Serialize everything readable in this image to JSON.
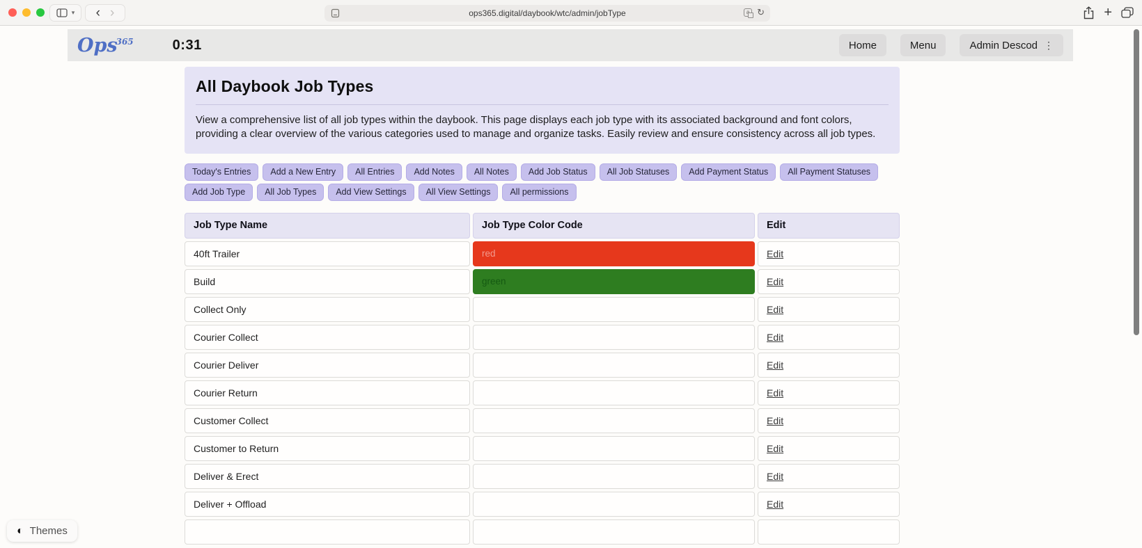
{
  "browser": {
    "url": "ops365.digital/daybook/wtc/admin/jobType"
  },
  "app_header": {
    "logo_text": "Ops",
    "logo_sup": "365",
    "timer": "0:31",
    "nav_buttons": [
      "Home",
      "Menu",
      "Admin Descod"
    ]
  },
  "intro": {
    "title": "All Daybook Job Types",
    "description": "View a comprehensive list of all job types within the daybook. This page displays each job type with its associated background and font colors, providing a clear overview of the various categories used to manage and organize tasks. Easily review and ensure consistency across all job types."
  },
  "action_buttons": [
    "Today's Entries",
    "Add a New Entry",
    "All Entries",
    "Add Notes",
    "All Notes",
    "Add Job Status",
    "All Job Statuses",
    "Add Payment Status",
    "All Payment Statuses",
    "Add Job Type",
    "All Job Types",
    "Add View Settings",
    "All View Settings",
    "All permissions"
  ],
  "table": {
    "columns": [
      "Job Type Name",
      "Job Type Color Code",
      "Edit"
    ],
    "edit_label": "Edit",
    "rows": [
      {
        "name": "40ft Trailer",
        "color_label": "red",
        "bg_color": "#e6381c",
        "font_color": "#f29a8e"
      },
      {
        "name": "Build",
        "color_label": "green",
        "bg_color": "#2e7d20",
        "font_color": "#155a12"
      },
      {
        "name": "Collect Only",
        "color_label": "",
        "bg_color": "",
        "font_color": ""
      },
      {
        "name": "Courier Collect",
        "color_label": "",
        "bg_color": "",
        "font_color": ""
      },
      {
        "name": "Courier Deliver",
        "color_label": "",
        "bg_color": "",
        "font_color": ""
      },
      {
        "name": "Courier Return",
        "color_label": "",
        "bg_color": "",
        "font_color": ""
      },
      {
        "name": "Customer Collect",
        "color_label": "",
        "bg_color": "",
        "font_color": ""
      },
      {
        "name": "Customer to Return",
        "color_label": "",
        "bg_color": "",
        "font_color": ""
      },
      {
        "name": "Deliver & Erect",
        "color_label": "",
        "bg_color": "",
        "font_color": ""
      },
      {
        "name": "Deliver + Offload",
        "color_label": "",
        "bg_color": "",
        "font_color": ""
      }
    ]
  },
  "themes_button": {
    "label": "Themes"
  },
  "colors": {
    "panel_lavender": "#e5e3f5",
    "chip_lavender": "#c6c0ed",
    "header_gray": "#e8e8e7",
    "red_row_bg": "#e6381c",
    "green_row_bg": "#2e7d20"
  }
}
